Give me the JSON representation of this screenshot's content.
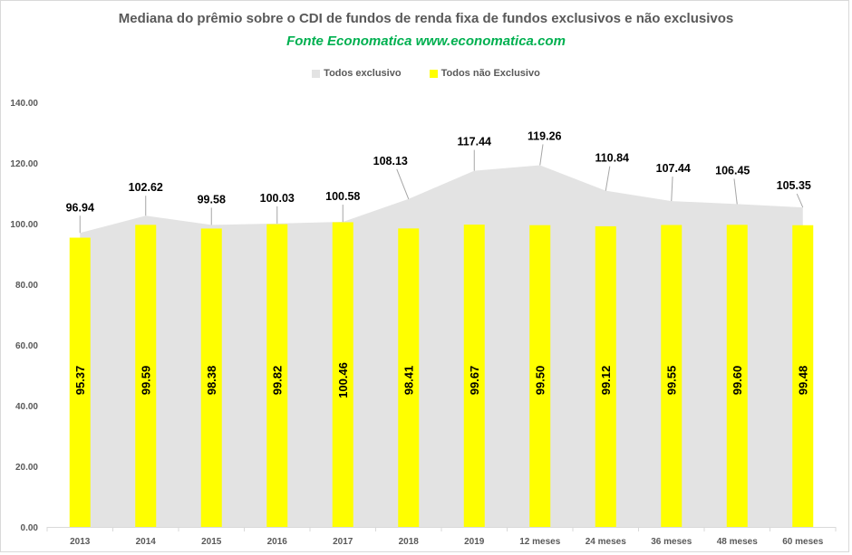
{
  "chart_data": {
    "type": "bar",
    "title": "Mediana do prêmio sobre o CDI de fundos de renda fixa de fundos exclusivos e não exclusivos",
    "subtitle": "Fonte Economatica www.economatica.com",
    "xlabel": "",
    "ylabel": "",
    "ylim": [
      0,
      140
    ],
    "yticks": [
      "0.00",
      "20.00",
      "40.00",
      "60.00",
      "80.00",
      "100.00",
      "120.00",
      "140.00"
    ],
    "grid": false,
    "legend_position": "top",
    "categories": [
      "2013",
      "2014",
      "2015",
      "2016",
      "2017",
      "2018",
      "2019",
      "12 meses",
      "24 meses",
      "36 meses",
      "48 meses",
      "60 meses"
    ],
    "series": [
      {
        "name": "Todos exclusivo",
        "kind": "area",
        "color": "#e3e3e3",
        "values": [
          96.94,
          102.62,
          99.58,
          100.03,
          100.58,
          108.13,
          117.44,
          119.26,
          110.84,
          107.44,
          106.45,
          105.35
        ],
        "labels": [
          "96.94",
          "102.62",
          "99.58",
          "100.03",
          "100.58",
          "108.13",
          "117.44",
          "119.26",
          "110.84",
          "107.44",
          "106.45",
          "105.35"
        ]
      },
      {
        "name": "Todos não Exclusivo",
        "kind": "bar",
        "color": "#ffff00",
        "values": [
          95.37,
          99.59,
          98.38,
          99.82,
          100.46,
          98.41,
          99.67,
          99.5,
          99.12,
          99.55,
          99.6,
          99.48
        ],
        "labels": [
          "95.37",
          "99.59",
          "98.38",
          "99.82",
          "100.46",
          "98.41",
          "99.67",
          "99.50",
          "99.12",
          "99.55",
          "99.60",
          "99.48"
        ]
      }
    ]
  }
}
